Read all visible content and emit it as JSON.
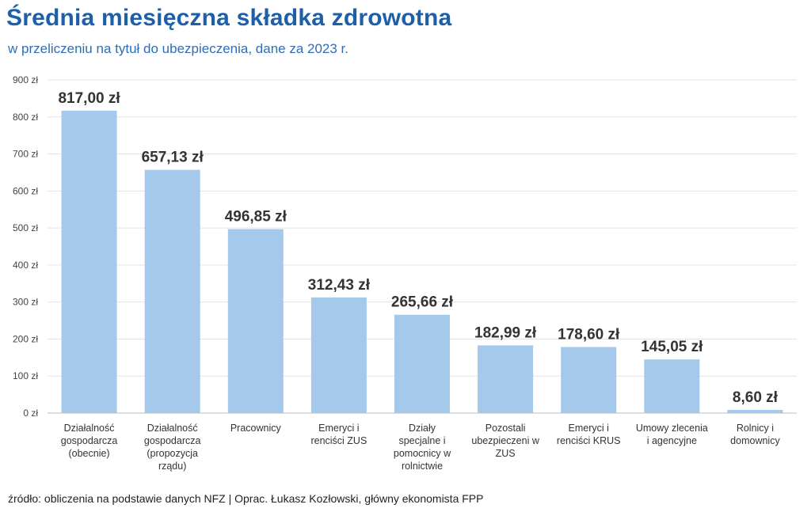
{
  "chart_data": {
    "type": "bar",
    "title": "Średnia miesięczna składka zdrowotna",
    "subtitle": "w przeliczeniu na tytuł do ubezpieczenia, dane za 2023 r.",
    "categories": [
      [
        "Działalność",
        "gospodarcza",
        "(obecnie)"
      ],
      [
        "Działalność",
        "gospodarcza",
        "(propozycja",
        "rządu)"
      ],
      [
        "Pracownicy"
      ],
      [
        "Emeryci i",
        "renciści ZUS"
      ],
      [
        "Działy",
        "specjalne i",
        "pomocnicy w",
        "rolnictwie"
      ],
      [
        "Pozostali",
        "ubezpieczeni w",
        "ZUS"
      ],
      [
        "Emeryci i",
        "renciści KRUS"
      ],
      [
        "Umowy zlecenia",
        "i agencyjne"
      ],
      [
        "Rolnicy i",
        "domownicy"
      ]
    ],
    "values": [
      817.0,
      657.13,
      496.85,
      312.43,
      265.66,
      182.99,
      178.6,
      145.05,
      8.6
    ],
    "value_labels": [
      "817,00 zł",
      "657,13 zł",
      "496,85 zł",
      "312,43 zł",
      "265,66 zł",
      "182,99 zł",
      "178,60 zł",
      "145,05 zł",
      "8,60 zł"
    ],
    "ylim": [
      0,
      900
    ],
    "yticks": [
      0,
      100,
      200,
      300,
      400,
      500,
      600,
      700,
      800,
      900
    ],
    "ytick_labels": [
      "0 zł",
      "100 zł",
      "200 zł",
      "300 zł",
      "400 zł",
      "500 zł",
      "600 zł",
      "700 zł",
      "800 zł",
      "900 zł"
    ],
    "grid": true,
    "legend": "none",
    "bar_color": "#a5c9ea"
  },
  "source": "źródło: obliczenia na podstawie danych NFZ | Oprac. Łukasz Kozłowski, główny ekonomista FPP"
}
